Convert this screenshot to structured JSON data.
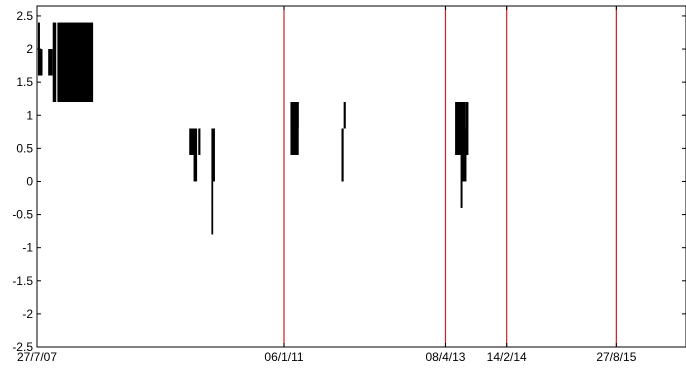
{
  "chart_data": {
    "type": "bar",
    "title": "",
    "xlabel": "",
    "ylabel": "",
    "grid": false,
    "legend": "none",
    "xlim": [
      "2007-07-27",
      "2016-08-16"
    ],
    "ylim": [
      -2.5,
      2.65
    ],
    "x_tick_labels": [
      {
        "date": "2007-07-27",
        "label": "27/7/07"
      },
      {
        "date": "2011-01-06",
        "label": "06/1/11"
      },
      {
        "date": "2013-04-08",
        "label": "08/4/13"
      },
      {
        "date": "2014-02-14",
        "label": "14/2/14"
      },
      {
        "date": "2015-08-27",
        "label": "27/8/15"
      }
    ],
    "y_ticks": [
      {
        "value": 2.5,
        "label": "2.5"
      },
      {
        "value": 2,
        "label": "2"
      },
      {
        "value": 1.5,
        "label": "1.5"
      },
      {
        "value": 1,
        "label": "1"
      },
      {
        "value": 0.5,
        "label": "0.5"
      },
      {
        "value": 0,
        "label": "0"
      },
      {
        "value": -0.5,
        "label": "-0.5"
      },
      {
        "value": -1,
        "label": "-1"
      },
      {
        "value": -1.5,
        "label": "-1.5"
      },
      {
        "value": -2,
        "label": "-2"
      },
      {
        "value": -2.5,
        "label": "-2.5"
      }
    ],
    "vertical_markers": [
      "2011-01-06",
      "2013-04-08",
      "2014-02-14",
      "2015-08-27"
    ],
    "marker_color": "#cc2222",
    "bar_color": "#000000",
    "bars": [
      {
        "start": "2007-08-01",
        "end": "2007-08-11",
        "low": 2.0,
        "high": 2.4
      },
      {
        "start": "2007-08-01",
        "end": "2007-08-24",
        "low": 1.6,
        "high": 2.0
      },
      {
        "start": "2007-09-22",
        "end": "2007-10-15",
        "low": 1.6,
        "high": 2.0
      },
      {
        "start": "2007-10-15",
        "end": "2007-11-02",
        "low": 1.2,
        "high": 2.4
      },
      {
        "start": "2007-11-08",
        "end": "2008-05-08",
        "low": 1.2,
        "high": 2.4
      },
      {
        "start": "2009-09-10",
        "end": "2009-10-14",
        "low": 0.4,
        "high": 0.8
      },
      {
        "start": "2009-10-02",
        "end": "2009-10-20",
        "low": 0.0,
        "high": 0.8
      },
      {
        "start": "2009-10-26",
        "end": "2009-11-06",
        "low": 0.4,
        "high": 0.8
      },
      {
        "start": "2010-01-01",
        "end": "2010-01-19",
        "low": 0.0,
        "high": 0.8
      },
      {
        "start": "2010-01-01",
        "end": "2010-01-10",
        "low": -0.4,
        "high": 0.0
      },
      {
        "start": "2010-01-01",
        "end": "2010-01-10",
        "low": -0.8,
        "high": -0.4
      },
      {
        "start": "2011-02-08",
        "end": "2011-03-22",
        "low": 0.4,
        "high": 1.2
      },
      {
        "start": "2011-02-08",
        "end": "2011-03-22",
        "low": 0.8,
        "high": 1.2
      },
      {
        "start": "2011-10-26",
        "end": "2011-11-06",
        "low": 0.0,
        "high": 0.8
      },
      {
        "start": "2011-11-06",
        "end": "2011-11-17",
        "low": 0.8,
        "high": 1.2
      },
      {
        "start": "2013-05-27",
        "end": "2013-07-18",
        "low": 0.4,
        "high": 1.2
      },
      {
        "start": "2013-06-24",
        "end": "2013-07-24",
        "low": 0.0,
        "high": 0.4
      },
      {
        "start": "2013-06-24",
        "end": "2013-07-04",
        "low": -0.4,
        "high": 0.0
      },
      {
        "start": "2013-07-12",
        "end": "2013-08-03",
        "low": 0.4,
        "high": 0.8
      },
      {
        "start": "2013-07-18",
        "end": "2013-08-03",
        "low": 0.8,
        "high": 1.2
      }
    ]
  }
}
